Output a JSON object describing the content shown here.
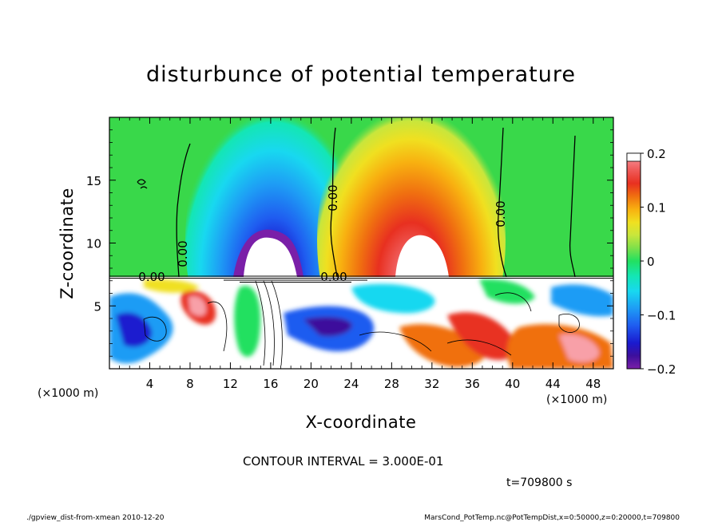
{
  "chart_data": {
    "type": "heatmap",
    "title": "disturbunce of potential temperature",
    "xlabel": "X-coordinate",
    "ylabel": "Z-coordinate",
    "x_unit": "(×1000 m)",
    "y_unit": "(×1000 m)",
    "xlim": [
      0,
      50
    ],
    "ylim": [
      0,
      20
    ],
    "x_ticks": [
      4,
      8,
      12,
      16,
      20,
      24,
      28,
      32,
      36,
      40,
      44,
      48
    ],
    "y_ticks": [
      5,
      10,
      15
    ],
    "colorbar": {
      "range": [
        -0.2,
        0.2
      ],
      "tick_labels": [
        "0.2",
        "0.1",
        "0",
        "−0.1",
        "−0.2"
      ],
      "tick_values": [
        0.2,
        0.1,
        0,
        -0.1,
        -0.2
      ],
      "colors": [
        "#7a1fa8",
        "#3d0f9c",
        "#1a1acf",
        "#1f5cf0",
        "#1e9cf5",
        "#18d8f0",
        "#14e6b4",
        "#22e060",
        "#39d84a",
        "#7ee04a",
        "#c8e63c",
        "#f0e020",
        "#f8b010",
        "#f07010",
        "#e83020",
        "#f06060",
        "#f8a0a8",
        "#ffffff"
      ]
    },
    "contour_labels": [
      "0.00",
      "0.00",
      "0.00",
      "0.00",
      "0.00"
    ],
    "contour_interval": "CONTOUR INTERVAL = 3.000E-01",
    "anomalies": [
      {
        "kind": "cold",
        "x_center": 16.5,
        "x_width": 11,
        "z_top": 19.5,
        "min": -0.2
      },
      {
        "kind": "warm",
        "x_center": 31.5,
        "x_width": 12,
        "z_top": 19.5,
        "max": 0.2
      }
    ],
    "boundary_layer_top_z": 7.3
  },
  "footer": {
    "time": "t=709800 s",
    "left": "./gpview_dist-from-xmean  2010-12-20",
    "right": "MarsCond_PotTemp.nc@PotTempDist,x=0:50000,z=0:20000,t=709800"
  }
}
